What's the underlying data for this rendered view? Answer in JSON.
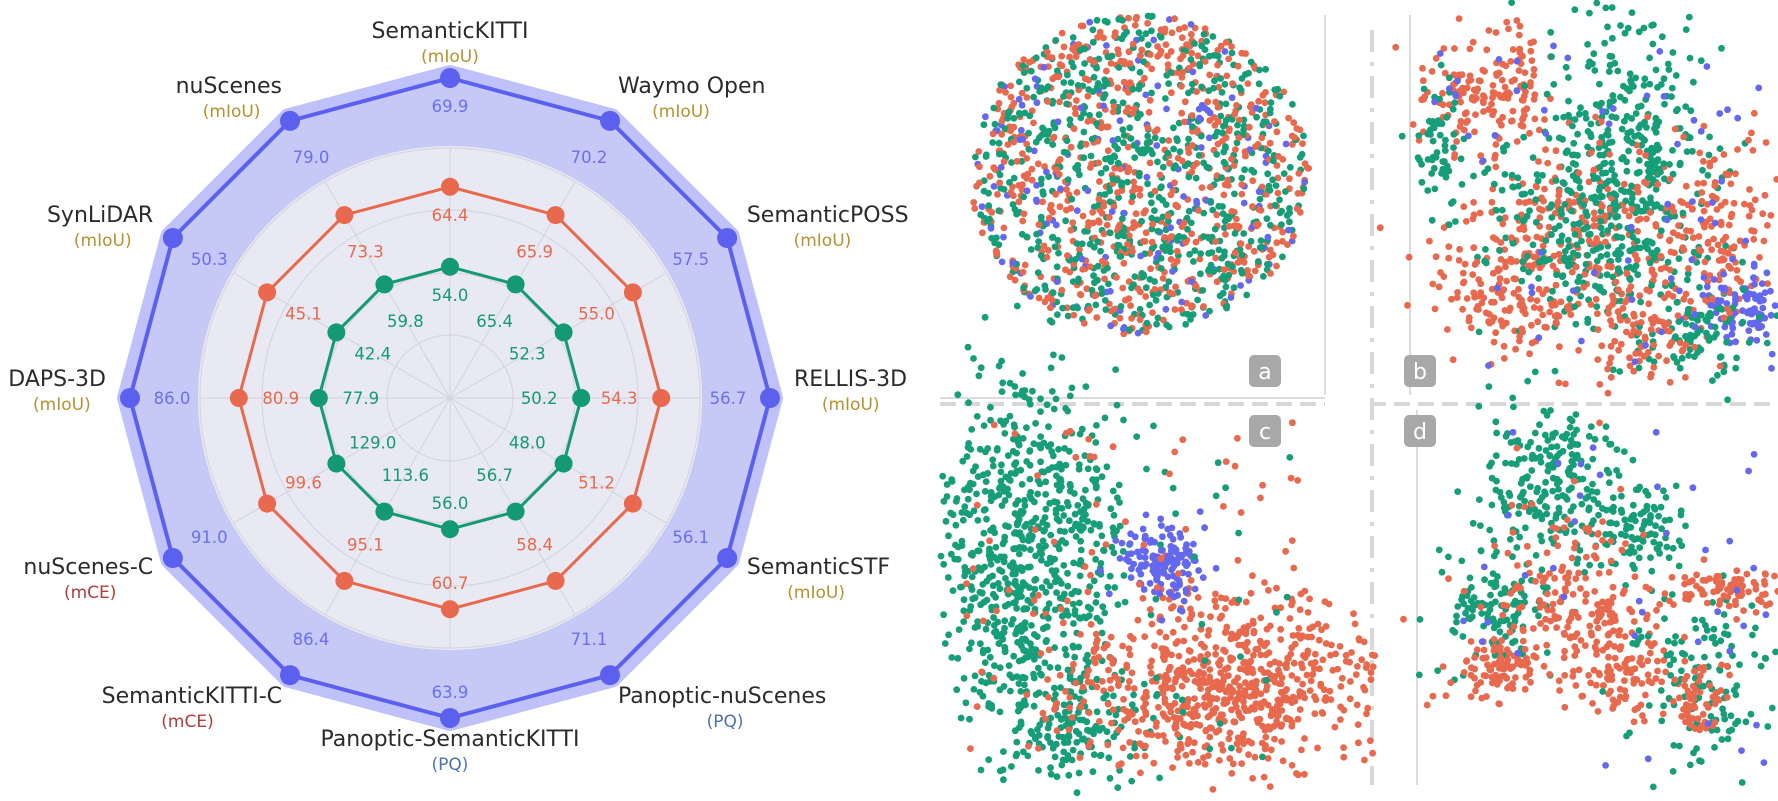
{
  "chart_data": [
    {
      "type": "radar",
      "axes": [
        {
          "name": "SemanticKITTI",
          "metric": "(mIoU)"
        },
        {
          "name": "Waymo Open",
          "metric": "(mIoU)"
        },
        {
          "name": "SemanticPOSS",
          "metric": "(mIoU)"
        },
        {
          "name": "RELLIS-3D",
          "metric": "(mIoU)"
        },
        {
          "name": "SemanticSTF",
          "metric": "(mIoU)"
        },
        {
          "name": "Panoptic-nuScenes",
          "metric": "(PQ)"
        },
        {
          "name": "Panoptic-SemanticKITTI",
          "metric": "(PQ)"
        },
        {
          "name": "SemanticKITTI-C",
          "metric": "(mCE)"
        },
        {
          "name": "nuScenes-C",
          "metric": "(mCE)"
        },
        {
          "name": "DAPS-3D",
          "metric": "(mIoU)"
        },
        {
          "name": "SynLiDAR",
          "metric": "(mIoU)"
        },
        {
          "name": "nuScenes",
          "metric": "(mIoU)"
        }
      ],
      "series": [
        {
          "color": "#5b60ee",
          "values": [
            "69.9",
            "70.2",
            "57.5",
            "56.7",
            "56.1",
            "71.1",
            "63.9",
            "86.4",
            "91.0",
            "86.0",
            "50.3",
            "79.0"
          ],
          "level": 1.0
        },
        {
          "color": "#e8694d",
          "values": [
            "64.4",
            "65.9",
            "55.0",
            "54.3",
            "51.2",
            "58.4",
            "60.7",
            "95.1",
            "99.6",
            "80.9",
            "45.1",
            "73.3"
          ],
          "level": 0.66
        },
        {
          "color": "#149a72",
          "values": [
            "54.0",
            "65.4",
            "52.3",
            "50.2",
            "48.0",
            "56.7",
            "56.0",
            "113.6",
            "129.0",
            "77.9",
            "42.4",
            "59.8"
          ],
          "level": 0.41
        }
      ],
      "metric_colors": {
        "mIoU": "#b8912e",
        "mCE": "#b73a3a",
        "PQ": "#4d72b8"
      },
      "grid": true
    },
    {
      "type": "scatter",
      "panels": [
        "a",
        "b",
        "c",
        "d"
      ],
      "classes": [
        {
          "color": "#e8694d"
        },
        {
          "color": "#169e78"
        },
        {
          "color": "#6468ef"
        }
      ]
    }
  ]
}
